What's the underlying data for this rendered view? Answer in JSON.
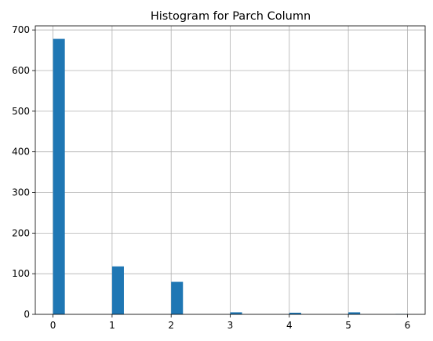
{
  "chart_data": {
    "type": "bar",
    "title": "Histogram for Parch Column",
    "xlabel": "",
    "ylabel": "",
    "xlim": [
      -0.3,
      6.3
    ],
    "ylim": [
      0,
      710
    ],
    "xticks": [
      0,
      1,
      2,
      3,
      4,
      5,
      6
    ],
    "yticks": [
      0,
      100,
      200,
      300,
      400,
      500,
      600,
      700
    ],
    "grid": true,
    "bin_width": 0.2,
    "bins": [
      {
        "x0": 0.0,
        "x1": 0.2,
        "count": 678
      },
      {
        "x0": 1.0,
        "x1": 1.2,
        "count": 118
      },
      {
        "x0": 2.0,
        "x1": 2.2,
        "count": 80
      },
      {
        "x0": 3.0,
        "x1": 3.2,
        "count": 5
      },
      {
        "x0": 4.0,
        "x1": 4.2,
        "count": 4
      },
      {
        "x0": 5.0,
        "x1": 5.2,
        "count": 5
      },
      {
        "x0": 5.8,
        "x1": 6.0,
        "count": 1
      }
    ],
    "bar_color": "#1f77b4",
    "grid_color": "#b0b0b0"
  }
}
